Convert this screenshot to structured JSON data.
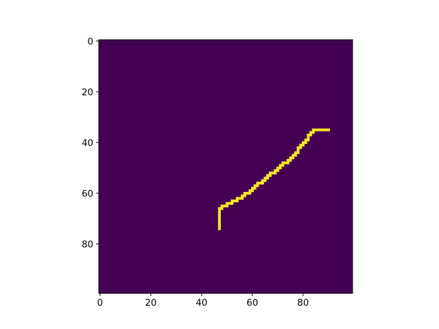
{
  "chart_data": {
    "type": "heatmap",
    "title": "",
    "xlabel": "",
    "ylabel": "",
    "grid_size": [
      100,
      100
    ],
    "xlim": [
      -0.5,
      99.5
    ],
    "ylim": [
      99.5,
      -0.5
    ],
    "y_axis_inverted": true,
    "colormap": "viridis",
    "background_value": 0,
    "line_value": 1,
    "background_color": "#440154",
    "line_color": "#fde725",
    "x_ticks": [
      0,
      20,
      40,
      60,
      80
    ],
    "y_ticks": [
      0,
      20,
      40,
      60,
      80
    ],
    "x_tick_labels": [
      "0",
      "20",
      "40",
      "60",
      "80"
    ],
    "y_tick_labels": [
      "0",
      "20",
      "40",
      "60",
      "80"
    ],
    "path_vertices": [
      [
        47,
        74
      ],
      [
        47,
        66
      ],
      [
        52,
        63
      ],
      [
        56,
        61
      ],
      [
        60,
        58
      ],
      [
        65,
        54
      ],
      [
        70,
        50
      ],
      [
        75,
        46
      ],
      [
        80,
        40
      ],
      [
        84,
        35
      ],
      [
        90,
        35
      ]
    ],
    "grid": false,
    "legend": "none"
  }
}
